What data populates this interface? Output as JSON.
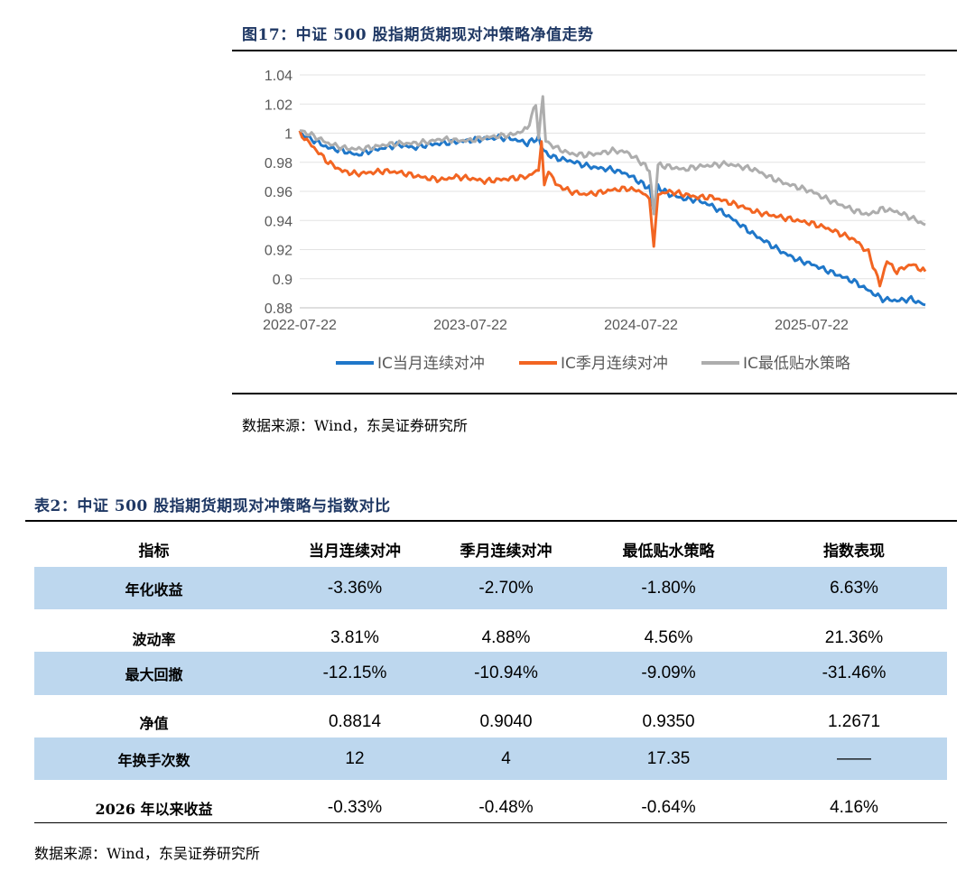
{
  "figure": {
    "title": "图17：中证 500 股指期货期现对冲策略净值走势",
    "source": "数据来源：Wind，东吴证券研究所"
  },
  "chart_data": {
    "type": "line",
    "y_ticks": [
      "1.04",
      "1.02",
      "1",
      "0.98",
      "0.96",
      "0.94",
      "0.92",
      "0.9",
      "0.88"
    ],
    "x_ticks": [
      "2022-07-22",
      "2023-07-22",
      "2024-07-22",
      "2025-07-22"
    ],
    "ylim": [
      0.88,
      1.04
    ],
    "x_range_months": [
      0,
      44
    ],
    "grid": true,
    "legend_placement": "bottom",
    "series": [
      {
        "name": "IC当月连续对冲",
        "color": "#1f77c9",
        "points": [
          [
            0,
            1.0
          ],
          [
            1,
            0.995
          ],
          [
            2,
            0.99
          ],
          [
            3,
            0.988
          ],
          [
            4,
            0.985
          ],
          [
            5,
            0.988
          ],
          [
            6,
            0.99
          ],
          [
            7,
            0.992
          ],
          [
            8,
            0.99
          ],
          [
            9,
            0.992
          ],
          [
            10,
            0.993
          ],
          [
            11,
            0.994
          ],
          [
            12,
            0.995
          ],
          [
            13,
            0.996
          ],
          [
            14,
            0.997
          ],
          [
            15,
            0.996
          ],
          [
            16,
            0.993
          ],
          [
            16.8,
            0.997
          ],
          [
            17,
            0.99
          ],
          [
            17.5,
            0.985
          ],
          [
            18,
            0.983
          ],
          [
            19,
            0.981
          ],
          [
            20,
            0.978
          ],
          [
            21,
            0.976
          ],
          [
            22,
            0.975
          ],
          [
            23,
            0.972
          ],
          [
            24,
            0.966
          ],
          [
            24.6,
            0.962
          ],
          [
            24.9,
            0.948
          ],
          [
            25.2,
            0.963
          ],
          [
            26,
            0.958
          ],
          [
            27,
            0.955
          ],
          [
            28,
            0.954
          ],
          [
            29,
            0.95
          ],
          [
            30,
            0.944
          ],
          [
            31,
            0.937
          ],
          [
            32,
            0.93
          ],
          [
            33,
            0.924
          ],
          [
            34,
            0.918
          ],
          [
            35,
            0.913
          ],
          [
            36,
            0.91
          ],
          [
            37,
            0.906
          ],
          [
            38,
            0.902
          ],
          [
            39,
            0.898
          ],
          [
            40,
            0.892
          ],
          [
            41,
            0.886
          ],
          [
            42,
            0.885
          ],
          [
            43,
            0.886
          ],
          [
            44,
            0.882
          ]
        ]
      },
      {
        "name": "IC季月连续对冲",
        "color": "#f26522",
        "points": [
          [
            0,
            1.0
          ],
          [
            1,
            0.99
          ],
          [
            2,
            0.98
          ],
          [
            3,
            0.974
          ],
          [
            4,
            0.972
          ],
          [
            5,
            0.973
          ],
          [
            6,
            0.974
          ],
          [
            7,
            0.973
          ],
          [
            8,
            0.971
          ],
          [
            9,
            0.969
          ],
          [
            10,
            0.968
          ],
          [
            11,
            0.97
          ],
          [
            12,
            0.969
          ],
          [
            13,
            0.967
          ],
          [
            14,
            0.968
          ],
          [
            15,
            0.969
          ],
          [
            16,
            0.97
          ],
          [
            16.8,
            0.975
          ],
          [
            17,
            0.995
          ],
          [
            17.2,
            0.963
          ],
          [
            17.5,
            0.975
          ],
          [
            18,
            0.965
          ],
          [
            19,
            0.96
          ],
          [
            20,
            0.958
          ],
          [
            21,
            0.959
          ],
          [
            22,
            0.961
          ],
          [
            23,
            0.962
          ],
          [
            24,
            0.96
          ],
          [
            24.6,
            0.955
          ],
          [
            24.9,
            0.922
          ],
          [
            25.2,
            0.958
          ],
          [
            26,
            0.96
          ],
          [
            27,
            0.958
          ],
          [
            28,
            0.956
          ],
          [
            29,
            0.956
          ],
          [
            30,
            0.953
          ],
          [
            31,
            0.95
          ],
          [
            32,
            0.946
          ],
          [
            33,
            0.944
          ],
          [
            34,
            0.942
          ],
          [
            35,
            0.94
          ],
          [
            36,
            0.938
          ],
          [
            37,
            0.935
          ],
          [
            38,
            0.931
          ],
          [
            39,
            0.927
          ],
          [
            40,
            0.918
          ],
          [
            40.8,
            0.896
          ],
          [
            41.3,
            0.912
          ],
          [
            42,
            0.905
          ],
          [
            43,
            0.91
          ],
          [
            44,
            0.905
          ]
        ]
      },
      {
        "name": "IC最低贴水策略",
        "color": "#adadad",
        "points": [
          [
            0,
            1.002
          ],
          [
            1,
            0.998
          ],
          [
            2,
            0.993
          ],
          [
            3,
            0.99
          ],
          [
            4,
            0.989
          ],
          [
            5,
            0.99
          ],
          [
            6,
            0.992
          ],
          [
            7,
            0.993
          ],
          [
            8,
            0.993
          ],
          [
            9,
            0.994
          ],
          [
            10,
            0.996
          ],
          [
            11,
            0.995
          ],
          [
            12,
            0.995
          ],
          [
            13,
            0.997
          ],
          [
            14,
            0.998
          ],
          [
            15,
            0.999
          ],
          [
            16,
            1.003
          ],
          [
            16.6,
            1.02
          ],
          [
            16.8,
            0.998
          ],
          [
            17.1,
            1.024
          ],
          [
            17.3,
            0.995
          ],
          [
            18,
            0.99
          ],
          [
            19,
            0.986
          ],
          [
            20,
            0.985
          ],
          [
            21,
            0.986
          ],
          [
            22,
            0.988
          ],
          [
            23,
            0.987
          ],
          [
            24,
            0.98
          ],
          [
            24.6,
            0.975
          ],
          [
            24.9,
            0.944
          ],
          [
            25.2,
            0.978
          ],
          [
            26,
            0.977
          ],
          [
            27,
            0.975
          ],
          [
            28,
            0.977
          ],
          [
            29,
            0.978
          ],
          [
            30,
            0.979
          ],
          [
            31,
            0.977
          ],
          [
            32,
            0.975
          ],
          [
            33,
            0.97
          ],
          [
            34,
            0.966
          ],
          [
            35,
            0.963
          ],
          [
            36,
            0.96
          ],
          [
            37,
            0.955
          ],
          [
            38,
            0.951
          ],
          [
            39,
            0.947
          ],
          [
            40,
            0.944
          ],
          [
            41,
            0.948
          ],
          [
            42,
            0.946
          ],
          [
            43,
            0.942
          ],
          [
            44,
            0.937
          ]
        ]
      }
    ]
  },
  "table": {
    "title": "表2：中证 500 股指期货期现对冲策略与指数对比",
    "headers": [
      "指标",
      "当月连续对冲",
      "季月连续对冲",
      "最低贴水策略",
      "指数表现"
    ],
    "rows": [
      {
        "label": "年化收益",
        "values": [
          "-3.36%",
          "-2.70%",
          "-1.80%",
          "6.63%"
        ]
      },
      {
        "label": "波动率",
        "values": [
          "3.81%",
          "4.88%",
          "4.56%",
          "21.36%"
        ]
      },
      {
        "label": "最大回撤",
        "values": [
          "-12.15%",
          "-10.94%",
          "-9.09%",
          "-31.46%"
        ]
      },
      {
        "label": "净值",
        "values": [
          "0.8814",
          "0.9040",
          "0.9350",
          "1.2671"
        ]
      },
      {
        "label": "年换手次数",
        "values": [
          "12",
          "4",
          "17.35",
          "——"
        ]
      },
      {
        "label": "2026 年以来收益",
        "values": [
          "-0.33%",
          "-0.48%",
          "-0.64%",
          "4.16%"
        ]
      }
    ],
    "shade_color": "#bdd7ee",
    "source": "数据来源：Wind，东吴证券研究所"
  }
}
